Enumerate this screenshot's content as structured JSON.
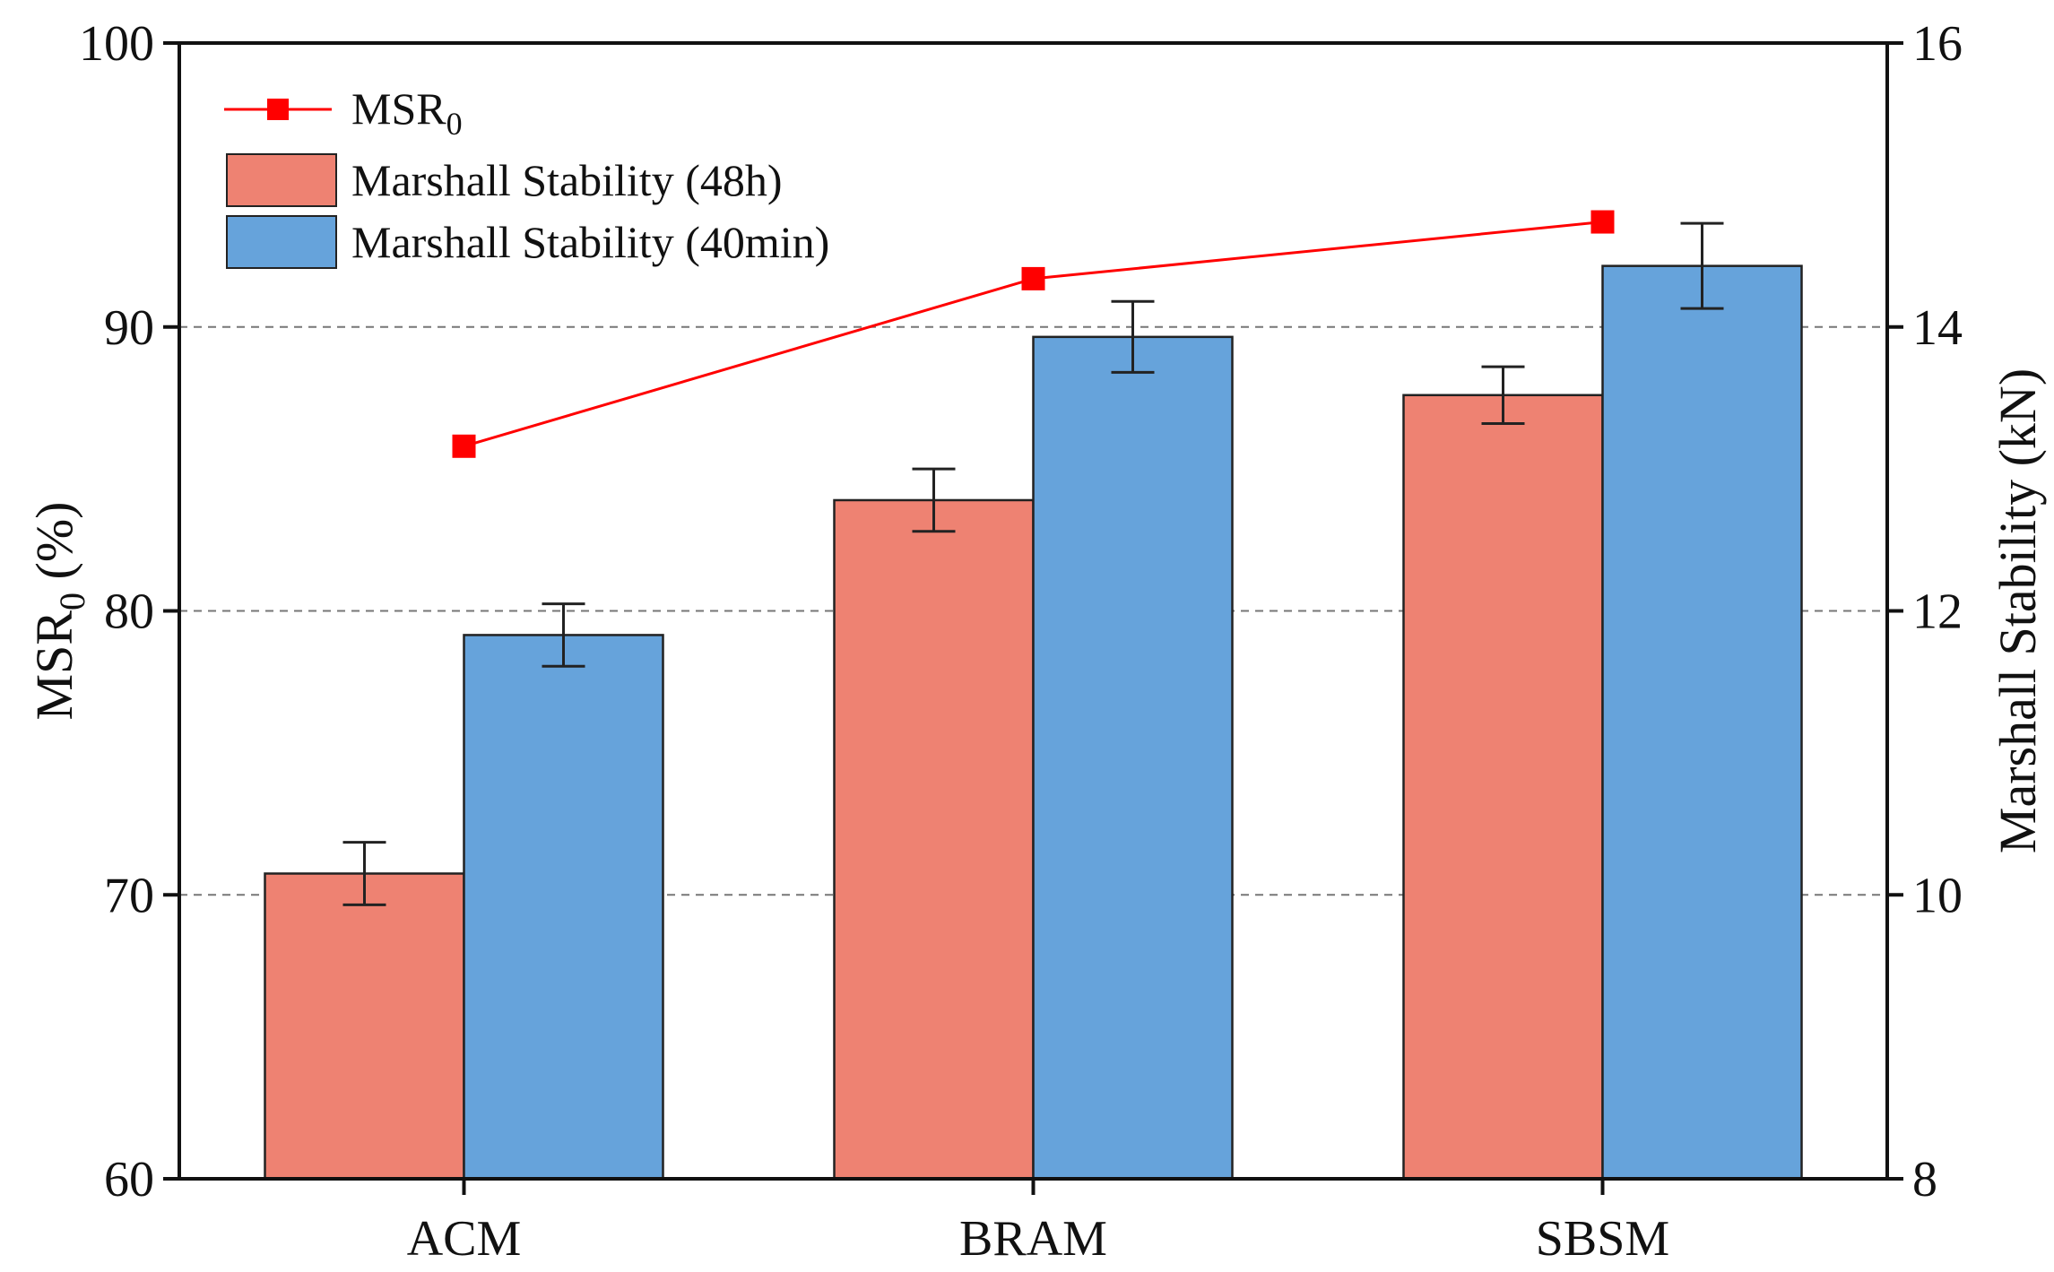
{
  "chart_data": {
    "type": "bar",
    "categories": [
      "ACM",
      "BRAM",
      "SBSM"
    ],
    "left_axis": {
      "label": "MSR",
      "label_sub": "0",
      "label_suffix": " (%)",
      "ylim": [
        60,
        100
      ],
      "ticks": [
        60,
        70,
        80,
        90,
        100
      ]
    },
    "right_axis": {
      "label": "Marshall Stability (kN)",
      "ylim": [
        8,
        16
      ],
      "ticks": [
        8,
        10,
        12,
        14,
        16
      ]
    },
    "gridlines_at_left": [
      70,
      80,
      90
    ],
    "series": [
      {
        "name": "Marshall Stability (48h)",
        "type": "bar",
        "axis": "right",
        "color": "#ee8272",
        "values": [
          10.15,
          12.78,
          13.52
        ],
        "errors": [
          0.22,
          0.22,
          0.2
        ]
      },
      {
        "name": "Marshall Stability (40min)",
        "type": "bar",
        "axis": "right",
        "color": "#66a3db",
        "values": [
          11.83,
          13.93,
          14.43
        ],
        "errors": [
          0.22,
          0.25,
          0.3
        ]
      },
      {
        "name": "MSR",
        "name_sub": "0",
        "type": "line",
        "axis": "left",
        "color": "#ff0000",
        "values": [
          85.8,
          91.7,
          93.7
        ]
      }
    ],
    "legend": {
      "placement": "top-left",
      "entries": [
        {
          "label": "MSR",
          "sub": "0"
        },
        {
          "label": "Marshall Stability (48h)"
        },
        {
          "label": "Marshall Stability (40min)"
        }
      ]
    }
  }
}
